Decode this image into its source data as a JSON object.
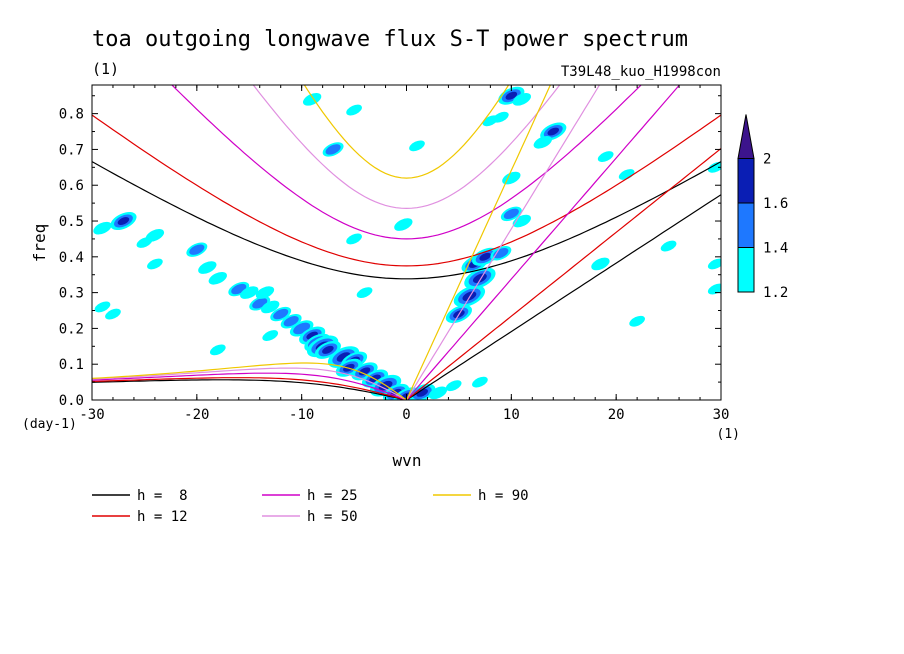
{
  "chart_data": {
    "type": "heatmap",
    "title": "toa outgoing longwave flux S-T power spectrum",
    "units_label": "(1)",
    "run_label": "T39L48_kuo_H1998con",
    "xlabel": "wvn",
    "ylabel": "freq",
    "x_unit_label": "(1)",
    "y_unit_label": "(day-1)",
    "xlim": [
      -30,
      30
    ],
    "ylim": [
      0,
      0.88
    ],
    "x_ticks": [
      -30,
      -20,
      -10,
      0,
      10,
      20,
      30
    ],
    "x_tick_labels": [
      "-30",
      "-20",
      "-10",
      "0",
      "10",
      "20",
      "30"
    ],
    "y_ticks": [
      0,
      0.1,
      0.2,
      0.3,
      0.4,
      0.5,
      0.6,
      0.7,
      0.8
    ],
    "y_tick_labels": [
      "0.0",
      "0.1",
      "0.2",
      "0.3",
      "0.4",
      "0.5",
      "0.6",
      "0.7",
      "0.8"
    ],
    "colorbar": {
      "levels": [
        1.2,
        1.4,
        1.6,
        2
      ],
      "labels": [
        "1.2",
        "1.4",
        "1.6",
        "2"
      ],
      "colors": [
        "#00ffff",
        "#1e78ff",
        "#0a1eb4",
        "#3c148c"
      ]
    },
    "dispersion_curves": [
      {
        "name": "h =  8",
        "h": 8,
        "color": "#000000"
      },
      {
        "name": "h = 12",
        "h": 12,
        "color": "#e00000"
      },
      {
        "name": "h = 25",
        "h": 25,
        "color": "#d000c8"
      },
      {
        "name": "h = 50",
        "h": 50,
        "color": "#e090e0"
      },
      {
        "name": "h = 90",
        "h": 90,
        "color": "#f0c800"
      }
    ],
    "power_blobs": [
      {
        "x": -27,
        "y": 0.5,
        "v": 1.6
      },
      {
        "x": -29,
        "y": 0.48,
        "v": 1.3
      },
      {
        "x": -24,
        "y": 0.46,
        "v": 1.3
      },
      {
        "x": -25,
        "y": 0.44,
        "v": 1.2
      },
      {
        "x": -20,
        "y": 0.42,
        "v": 1.4
      },
      {
        "x": -19,
        "y": 0.37,
        "v": 1.3
      },
      {
        "x": -18,
        "y": 0.34,
        "v": 1.3
      },
      {
        "x": -16,
        "y": 0.31,
        "v": 1.4
      },
      {
        "x": -15,
        "y": 0.3,
        "v": 1.3
      },
      {
        "x": -14,
        "y": 0.27,
        "v": 1.4
      },
      {
        "x": -13,
        "y": 0.26,
        "v": 1.3
      },
      {
        "x": -13.5,
        "y": 0.3,
        "v": 1.3
      },
      {
        "x": -12,
        "y": 0.24,
        "v": 1.4
      },
      {
        "x": -11,
        "y": 0.22,
        "v": 1.4
      },
      {
        "x": -10,
        "y": 0.2,
        "v": 1.5
      },
      {
        "x": -9,
        "y": 0.18,
        "v": 1.6
      },
      {
        "x": -8.5,
        "y": 0.16,
        "v": 1.6
      },
      {
        "x": -8,
        "y": 0.15,
        "v": 1.8
      },
      {
        "x": -7.5,
        "y": 0.14,
        "v": 1.6
      },
      {
        "x": -6,
        "y": 0.12,
        "v": 1.8
      },
      {
        "x": -5,
        "y": 0.11,
        "v": 1.6
      },
      {
        "x": -5.5,
        "y": 0.09,
        "v": 1.6
      },
      {
        "x": -4,
        "y": 0.08,
        "v": 1.6
      },
      {
        "x": -3,
        "y": 0.06,
        "v": 1.6
      },
      {
        "x": -2,
        "y": 0.04,
        "v": 1.8
      },
      {
        "x": -1,
        "y": 0.02,
        "v": 1.6
      },
      {
        "x": 0,
        "y": 0.01,
        "v": 1.6
      },
      {
        "x": 1.5,
        "y": 0.02,
        "v": 1.6
      },
      {
        "x": 3,
        "y": 0.02,
        "v": 1.3
      },
      {
        "x": 4.5,
        "y": 0.04,
        "v": 1.2
      },
      {
        "x": 7,
        "y": 0.05,
        "v": 1.2
      },
      {
        "x": 5,
        "y": 0.24,
        "v": 1.6
      },
      {
        "x": 6,
        "y": 0.29,
        "v": 1.8
      },
      {
        "x": 7,
        "y": 0.34,
        "v": 1.8
      },
      {
        "x": 6.5,
        "y": 0.38,
        "v": 1.6
      },
      {
        "x": 7.5,
        "y": 0.4,
        "v": 1.6
      },
      {
        "x": 9,
        "y": 0.41,
        "v": 1.4
      },
      {
        "x": 10,
        "y": 0.52,
        "v": 1.4
      },
      {
        "x": 11,
        "y": 0.5,
        "v": 1.3
      },
      {
        "x": 10,
        "y": 0.62,
        "v": 1.3
      },
      {
        "x": 14,
        "y": 0.75,
        "v": 1.6
      },
      {
        "x": 13,
        "y": 0.72,
        "v": 1.3
      },
      {
        "x": 10,
        "y": 0.85,
        "v": 1.6
      },
      {
        "x": 11,
        "y": 0.84,
        "v": 1.3
      },
      {
        "x": 9,
        "y": 0.79,
        "v": 1.2
      },
      {
        "x": 8,
        "y": 0.78,
        "v": 1.2
      },
      {
        "x": -7,
        "y": 0.7,
        "v": 1.4
      },
      {
        "x": -9,
        "y": 0.84,
        "v": 1.3
      },
      {
        "x": -5,
        "y": 0.81,
        "v": 1.2
      },
      {
        "x": -0.3,
        "y": 0.49,
        "v": 1.3
      },
      {
        "x": -5,
        "y": 0.45,
        "v": 1.2
      },
      {
        "x": 1,
        "y": 0.71,
        "v": 1.2
      },
      {
        "x": 19,
        "y": 0.68,
        "v": 1.2
      },
      {
        "x": 21,
        "y": 0.63,
        "v": 1.2
      },
      {
        "x": 18.5,
        "y": 0.38,
        "v": 1.3
      },
      {
        "x": 25,
        "y": 0.43,
        "v": 1.2
      },
      {
        "x": 29.5,
        "y": 0.38,
        "v": 1.2
      },
      {
        "x": 29.5,
        "y": 0.65,
        "v": 1.2
      },
      {
        "x": 22,
        "y": 0.22,
        "v": 1.2
      },
      {
        "x": -4,
        "y": 0.3,
        "v": 1.2
      },
      {
        "x": -13,
        "y": 0.18,
        "v": 1.2
      },
      {
        "x": -24,
        "y": 0.38,
        "v": 1.2
      },
      {
        "x": -18,
        "y": 0.14,
        "v": 1.2
      },
      {
        "x": -28,
        "y": 0.24,
        "v": 1.2
      },
      {
        "x": -29,
        "y": 0.26,
        "v": 1.2
      },
      {
        "x": 29.5,
        "y": 0.31,
        "v": 1.2
      }
    ]
  }
}
